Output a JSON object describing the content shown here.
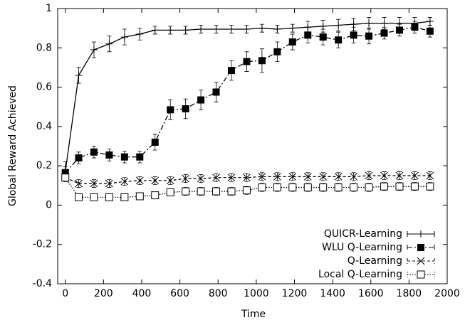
{
  "chart_data": {
    "type": "line",
    "x_label": "Time",
    "y_label": "Global Reward Achieved",
    "x": [
      0,
      70,
      150,
      230,
      310,
      390,
      470,
      550,
      630,
      710,
      790,
      870,
      950,
      1030,
      1110,
      1190,
      1270,
      1350,
      1430,
      1510,
      1590,
      1670,
      1750,
      1830,
      1910
    ],
    "series": [
      {
        "name": "QUICR-Learning",
        "color": "#000000",
        "dash": "none",
        "marker": "plus",
        "values": [
          0.17,
          0.66,
          0.79,
          0.82,
          0.855,
          0.87,
          0.89,
          0.89,
          0.89,
          0.895,
          0.895,
          0.895,
          0.895,
          0.9,
          0.895,
          0.9,
          0.905,
          0.91,
          0.915,
          0.92,
          0.925,
          0.925,
          0.925,
          0.925,
          0.935
        ],
        "errors": [
          0.05,
          0.04,
          0.04,
          0.04,
          0.04,
          0.03,
          0.02,
          0.02,
          0.02,
          0.02,
          0.02,
          0.02,
          0.02,
          0.02,
          0.02,
          0.02,
          0.03,
          0.03,
          0.03,
          0.03,
          0.03,
          0.03,
          0.03,
          0.03,
          0.02
        ]
      },
      {
        "name": "WLU Q-Learning",
        "color": "#000000",
        "dash": "7 3 2 3",
        "marker": "filled-square",
        "values": [
          0.165,
          0.24,
          0.27,
          0.255,
          0.245,
          0.245,
          0.32,
          0.485,
          0.49,
          0.535,
          0.575,
          0.685,
          0.73,
          0.735,
          0.78,
          0.83,
          0.865,
          0.855,
          0.84,
          0.865,
          0.86,
          0.875,
          0.89,
          0.905,
          0.885
        ],
        "errors": [
          0.03,
          0.03,
          0.03,
          0.03,
          0.03,
          0.03,
          0.04,
          0.05,
          0.05,
          0.05,
          0.05,
          0.05,
          0.05,
          0.06,
          0.05,
          0.04,
          0.04,
          0.04,
          0.04,
          0.04,
          0.04,
          0.03,
          0.03,
          0.03,
          0.03
        ]
      },
      {
        "name": "Q-Learning",
        "color": "#000000",
        "dash": "4 3",
        "marker": "cross",
        "values": [
          0.14,
          0.11,
          0.11,
          0.11,
          0.12,
          0.125,
          0.125,
          0.125,
          0.135,
          0.135,
          0.14,
          0.14,
          0.14,
          0.145,
          0.145,
          0.145,
          0.145,
          0.145,
          0.145,
          0.145,
          0.15,
          0.15,
          0.15,
          0.15,
          0.15
        ],
        "errors": [
          0.02,
          0.02,
          0.02,
          0.02,
          0.02,
          0.02,
          0.02,
          0.02,
          0.02,
          0.02,
          0.02,
          0.02,
          0.02,
          0.02,
          0.02,
          0.02,
          0.02,
          0.02,
          0.02,
          0.02,
          0.02,
          0.02,
          0.02,
          0.02,
          0.02
        ]
      },
      {
        "name": "Local Q-Learning",
        "color": "#000000",
        "dash": "1.5 2",
        "marker": "open-square",
        "values": [
          0.14,
          0.04,
          0.04,
          0.04,
          0.04,
          0.045,
          0.05,
          0.065,
          0.07,
          0.07,
          0.07,
          0.07,
          0.075,
          0.09,
          0.09,
          0.09,
          0.09,
          0.09,
          0.09,
          0.09,
          0.09,
          0.095,
          0.095,
          0.095,
          0.095
        ],
        "errors": [
          0.02,
          0.015,
          0.015,
          0.015,
          0.015,
          0.015,
          0.015,
          0.015,
          0.02,
          0.02,
          0.02,
          0.02,
          0.02,
          0.02,
          0.02,
          0.02,
          0.02,
          0.02,
          0.02,
          0.02,
          0.02,
          0.02,
          0.02,
          0.02,
          0.02
        ]
      }
    ],
    "xlim": [
      -40,
      2000
    ],
    "ylim": [
      -0.4,
      1
    ],
    "xticks": [
      0,
      200,
      400,
      600,
      800,
      1000,
      1200,
      1400,
      1600,
      1800,
      2000
    ],
    "yticks": [
      -0.4,
      -0.2,
      0,
      0.2,
      0.4,
      0.6,
      0.8,
      1
    ],
    "grid": false,
    "legend": "bottom-right"
  }
}
